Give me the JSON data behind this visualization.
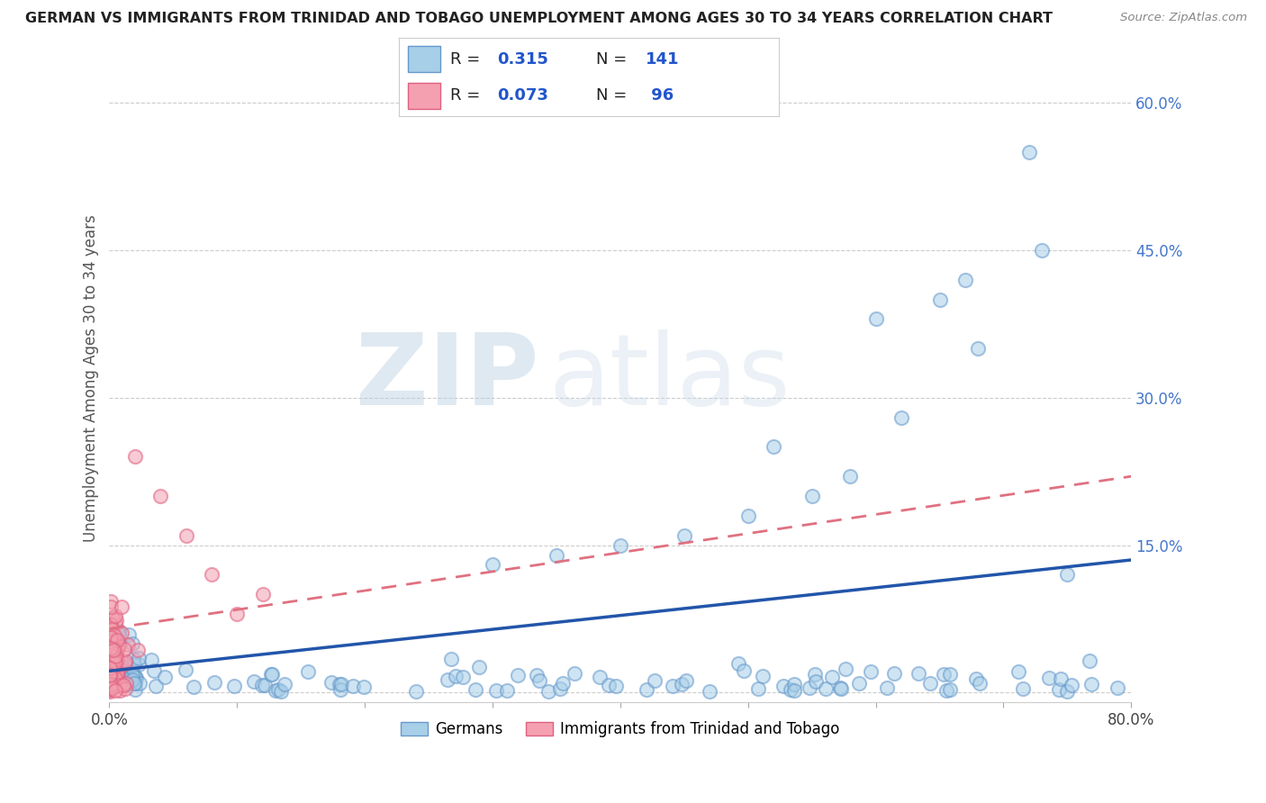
{
  "title": "GERMAN VS IMMIGRANTS FROM TRINIDAD AND TOBAGO UNEMPLOYMENT AMONG AGES 30 TO 34 YEARS CORRELATION CHART",
  "source": "Source: ZipAtlas.com",
  "ylabel": "Unemployment Among Ages 30 to 34 years",
  "xlim": [
    0.0,
    0.8
  ],
  "ylim": [
    -0.01,
    0.65
  ],
  "xticks": [
    0.0,
    0.1,
    0.2,
    0.3,
    0.4,
    0.5,
    0.6,
    0.7,
    0.8
  ],
  "xticklabels": [
    "0.0%",
    "",
    "",
    "",
    "",
    "",
    "",
    "",
    "80.0%"
  ],
  "yticks_right": [
    0.0,
    0.15,
    0.3,
    0.45,
    0.6
  ],
  "yticklabels_right": [
    "",
    "15.0%",
    "30.0%",
    "45.0%",
    "60.0%"
  ],
  "blue_color": "#a8cfe8",
  "blue_edge": "#6699cc",
  "pink_color": "#f4a0b0",
  "pink_edge": "#e06080",
  "blue_line_color": "#2255aa",
  "pink_line_color": "#e07080",
  "R_blue": 0.315,
  "N_blue": 141,
  "R_pink": 0.073,
  "N_pink": 96,
  "watermark_zip": "ZIP",
  "watermark_atlas": "atlas",
  "legend_label_blue": "Germans",
  "legend_label_pink": "Immigrants from Trinidad and Tobago",
  "background_color": "#ffffff",
  "grid_color": "#cccccc",
  "blue_trend_start": 0.022,
  "blue_trend_end": 0.135,
  "pink_trend_start": 0.065,
  "pink_trend_end": 0.22
}
